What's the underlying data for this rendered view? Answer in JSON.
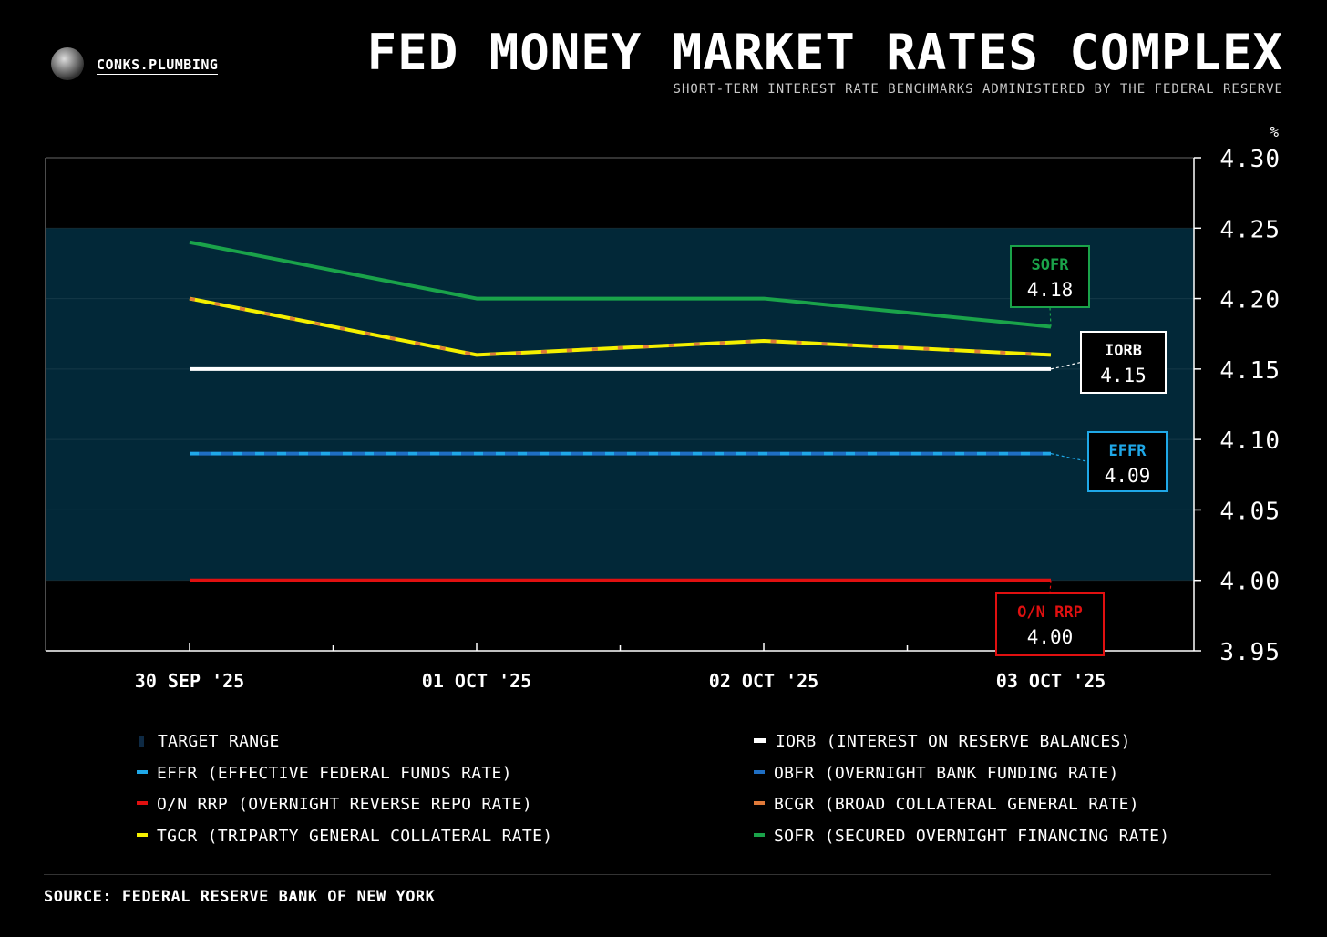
{
  "header": {
    "brand": "CONKS.PLUMBING",
    "title": "FED MONEY MARKET RATES COMPLEX",
    "subtitle": "SHORT-TERM INTEREST RATE BENCHMARKS ADMINISTERED BY THE FEDERAL RESERVE"
  },
  "chart_data": {
    "type": "line",
    "title": "FED MONEY MARKET RATES COMPLEX",
    "subtitle": "SHORT-TERM INTEREST RATE BENCHMARKS ADMINISTERED BY THE FEDERAL RESERVE",
    "ylabel": "%",
    "xlabel": "",
    "categories": [
      "30 SEP '25",
      "01 OCT '25",
      "02 OCT '25",
      "03 OCT '25"
    ],
    "ylim": [
      3.95,
      4.3
    ],
    "yticks": [
      "4.30",
      "4.25",
      "4.20",
      "4.15",
      "4.10",
      "4.05",
      "4.00",
      "3.95"
    ],
    "y_axis_position": "right",
    "grid": true,
    "target_range": [
      4.0,
      4.25
    ],
    "series": [
      {
        "name": "SOFR",
        "color": "#1aa34a",
        "values": [
          4.24,
          4.2,
          4.2,
          4.18
        ]
      },
      {
        "name": "TGCR",
        "color": "#f5f000",
        "values": [
          4.2,
          4.16,
          4.17,
          4.16
        ]
      },
      {
        "name": "BCGR",
        "color": "#e07a3a",
        "values": [
          4.2,
          4.16,
          4.17,
          4.16
        ]
      },
      {
        "name": "IORB",
        "color": "#ffffff",
        "values": [
          4.15,
          4.15,
          4.15,
          4.15
        ]
      },
      {
        "name": "OBFR",
        "color": "#1f6fc4",
        "values": [
          4.09,
          4.09,
          4.09,
          4.09
        ]
      },
      {
        "name": "EFFR",
        "color": "#1fa8e8",
        "values": [
          4.09,
          4.09,
          4.09,
          4.09
        ]
      },
      {
        "name": "O/N RRP",
        "color": "#e01010",
        "values": [
          4.0,
          4.0,
          4.0,
          4.0
        ]
      }
    ],
    "end_labels": [
      {
        "name": "SOFR",
        "value": "4.18",
        "color": "#1aa34a"
      },
      {
        "name": "IORB",
        "value": "4.15",
        "color": "#ffffff"
      },
      {
        "name": "EFFR",
        "value": "4.09",
        "color": "#1fa8e8"
      },
      {
        "name": "O/N RRP",
        "value": "4.00",
        "color": "#e01010"
      }
    ],
    "legend": {
      "placement": "bottom",
      "items": [
        {
          "label": "TARGET RANGE",
          "color": "#0e2a44"
        },
        {
          "label": "IORB (INTEREST ON RESERVE BALANCES)",
          "color": "#ffffff"
        },
        {
          "label": "EFFR (EFFECTIVE FEDERAL FUNDS RATE)",
          "color": "#1fa8e8"
        },
        {
          "label": "OBFR (OVERNIGHT BANK FUNDING RATE)",
          "color": "#1f6fc4"
        },
        {
          "label": "O/N RRP (OVERNIGHT REVERSE REPO RATE)",
          "color": "#e01010"
        },
        {
          "label": "BCGR (BROAD COLLATERAL GENERAL RATE)",
          "color": "#e07a3a"
        },
        {
          "label": "TGCR (TRIPARTY GENERAL COLLATERAL RATE)",
          "color": "#f5f000"
        },
        {
          "label": "SOFR (SECURED OVERNIGHT FINANCING RATE)",
          "color": "#1aa34a"
        }
      ]
    }
  },
  "footer": {
    "source": "SOURCE: FEDERAL RESERVE BANK OF NEW YORK"
  }
}
